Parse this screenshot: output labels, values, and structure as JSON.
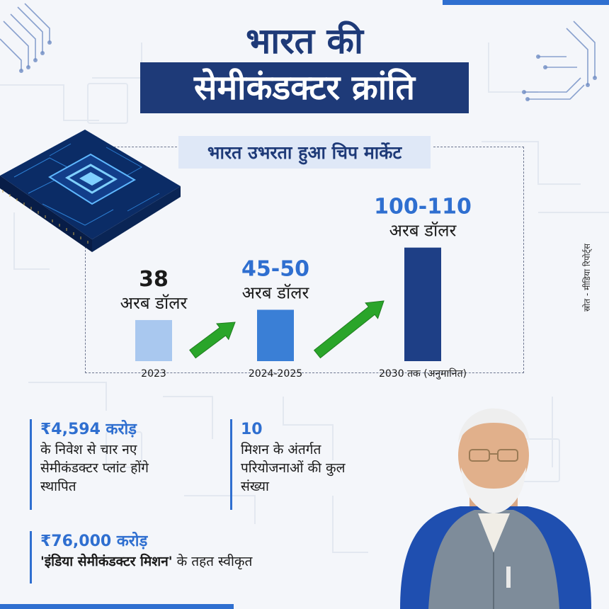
{
  "header": {
    "title_line1": "भारत की",
    "title_line2": "सेमीकंडक्टर क्रांति"
  },
  "subtitle": "भारत उभरता हुआ चिप मार्केट",
  "source": "स्रोत - मीडिया रिपोर्ट्स",
  "chart_data": {
    "type": "bar",
    "title": "भारत उभरता हुआ चिप मार्केट",
    "categories": [
      "2023",
      "2024-2025",
      "2030 तक (अनुमानित)"
    ],
    "value_labels": [
      "38",
      "45-50",
      "100-110"
    ],
    "unit_label": "अरब डॉलर",
    "values": [
      38,
      47.5,
      105
    ],
    "ylim": [
      0,
      110
    ],
    "colors": [
      "#a9c8ef",
      "#3a7fd6",
      "#1e3f86"
    ],
    "value_label_colors": [
      "#1a1a1a",
      "#2f6fd0",
      "#2f6fd0"
    ],
    "arrow_color": "#2aa52a"
  },
  "facts": [
    {
      "title": "₹4,594 करोड़",
      "desc": [
        "के निवेश से चार नए",
        "सेमीकंडक्टर प्लांट होंगे",
        "स्थापित"
      ]
    },
    {
      "title": "10",
      "desc": [
        "मिशन के अंतर्गत",
        "परियोजनाओं की कुल",
        "संख्या"
      ]
    },
    {
      "title": "₹76,000 करोड़",
      "desc_bold": "'इंडिया सेमीकंडक्टर मिशन'",
      "desc_rest": " के तहत स्वीकृत"
    }
  ],
  "icons": {
    "chip": "chip-icon",
    "growth_arrow": "growth-arrow-icon",
    "portrait": "portrait"
  },
  "colors": {
    "navy": "#1e3a78",
    "blue": "#2f6fd0",
    "background": "#f4f6fa"
  }
}
